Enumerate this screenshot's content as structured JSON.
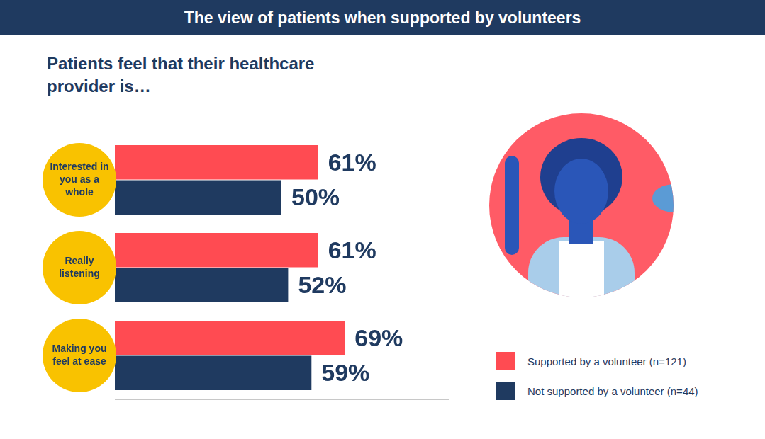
{
  "chart_data": {
    "type": "bar",
    "title": "The view of patients when supported by volunteers",
    "subtitle": "Patients feel that their healthcare provider is…",
    "orientation": "horizontal",
    "categories": [
      "Interested in you as a whole",
      "Really listening",
      "Making you feel at ease"
    ],
    "series": [
      {
        "name": "Supported by a volunteer (n=121)",
        "color": "#ff4b52",
        "values": [
          61,
          61,
          69
        ],
        "value_labels": [
          "61%",
          "61%",
          "69%"
        ]
      },
      {
        "name": "Not supported by a volunteer (n=44)",
        "color": "#1f3a60",
        "values": [
          50,
          52,
          59
        ],
        "value_labels": [
          "50%",
          "52%",
          "59%"
        ]
      }
    ],
    "xlim": [
      0,
      100
    ],
    "tick_labels": false,
    "grid": false,
    "data_labels": true,
    "legend": "right"
  }
}
